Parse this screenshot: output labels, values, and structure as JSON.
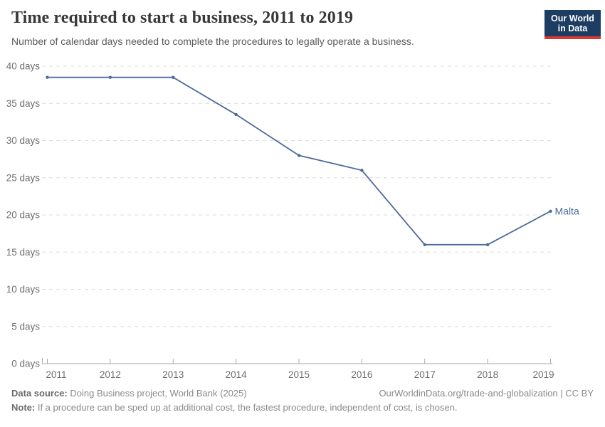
{
  "header": {
    "title": "Time required to start a business, 2011 to 2019",
    "subtitle": "Number of calendar days needed to complete the procedures to legally operate a business.",
    "logo": {
      "line1": "Our World",
      "line2": "in Data",
      "bg_color": "#1d3d63",
      "accent_color": "#d7382f"
    }
  },
  "chart_data": {
    "type": "line",
    "title": "Time required to start a business, 2011 to 2019",
    "xlabel": "",
    "ylabel": "",
    "x": [
      2011,
      2012,
      2013,
      2014,
      2015,
      2016,
      2017,
      2018,
      2019
    ],
    "series": [
      {
        "name": "Malta",
        "values": [
          38.5,
          38.5,
          38.5,
          33.5,
          28,
          26,
          16,
          16,
          20.5
        ],
        "color": "#4c6a9c"
      }
    ],
    "ylim": [
      0,
      40
    ],
    "ytick_step": 5,
    "ytick_suffix": " days",
    "grid": true,
    "legend_position": "line-end-label",
    "colors": {
      "gridline": "#dcdcdc",
      "axis": "#a8a8a8",
      "tick_label": "#6e6e6e"
    }
  },
  "footer": {
    "source_label": "Data source:",
    "source_text": " Doing Business project, World Bank (2025)",
    "attribution": "OurWorldinData.org/trade-and-globalization | CC BY",
    "note_label": "Note:",
    "note_text": " If a procedure can be sped up at additional cost, the fastest procedure, independent of cost, is chosen."
  }
}
